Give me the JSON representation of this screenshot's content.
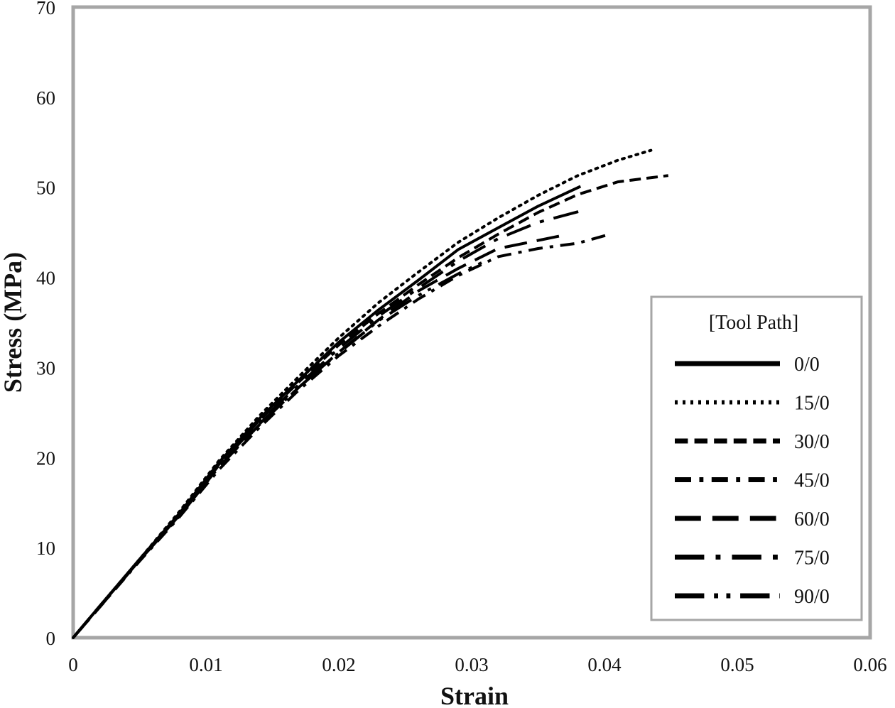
{
  "chart_data": {
    "type": "line",
    "xlabel": "Strain",
    "ylabel": "Stress (MPa)",
    "xlim": [
      0,
      0.06
    ],
    "ylim": [
      0,
      70
    ],
    "xticks": [
      "0",
      "0.01",
      "0.02",
      "0.03",
      "0.04",
      "0.05",
      "0.06"
    ],
    "yticks": [
      "0",
      "10",
      "20",
      "30",
      "40",
      "50",
      "60",
      "70"
    ],
    "grid": false,
    "legend": {
      "title": "[Tool Path]",
      "placement": "bottom-right"
    },
    "series": [
      {
        "name": "0/0",
        "style": "solid",
        "x": [
          0,
          0.002,
          0.005,
          0.008,
          0.011,
          0.014,
          0.017,
          0.02,
          0.023,
          0.026,
          0.029,
          0.032,
          0.035,
          0.0382
        ],
        "y": [
          0,
          3.5,
          8.7,
          13.8,
          19.5,
          24.3,
          28.6,
          32.8,
          36.4,
          39.7,
          43.1,
          45.5,
          47.9,
          50.1
        ]
      },
      {
        "name": "15/0",
        "style": "dotted",
        "x": [
          0,
          0.002,
          0.005,
          0.008,
          0.011,
          0.014,
          0.017,
          0.02,
          0.023,
          0.026,
          0.029,
          0.032,
          0.035,
          0.038,
          0.041,
          0.0435
        ],
        "y": [
          0,
          3.5,
          8.7,
          14.0,
          19.7,
          24.6,
          29.0,
          33.3,
          37.2,
          40.6,
          43.9,
          46.6,
          49.1,
          51.3,
          53.0,
          54.1
        ]
      },
      {
        "name": "30/0",
        "style": "short-dash",
        "x": [
          0,
          0.002,
          0.005,
          0.008,
          0.011,
          0.014,
          0.017,
          0.02,
          0.023,
          0.026,
          0.029,
          0.032,
          0.035,
          0.038,
          0.041,
          0.0448
        ],
        "y": [
          0,
          3.5,
          8.6,
          13.7,
          19.3,
          24.1,
          28.4,
          32.5,
          36.0,
          39.2,
          42.2,
          44.8,
          47.2,
          49.2,
          50.6,
          51.3
        ]
      },
      {
        "name": "45/0",
        "style": "dash-dot",
        "x": [
          0,
          0.002,
          0.005,
          0.008,
          0.011,
          0.014,
          0.017,
          0.02,
          0.023,
          0.026,
          0.029,
          0.032,
          0.035,
          0.038,
          0.0402
        ],
        "y": [
          0,
          3.4,
          8.5,
          13.4,
          18.7,
          23.3,
          27.5,
          31.3,
          34.6,
          37.6,
          40.2,
          42.3,
          43.2,
          43.8,
          44.7
        ]
      },
      {
        "name": "60/0",
        "style": "long-dash",
        "x": [
          0,
          0.002,
          0.005,
          0.008,
          0.011,
          0.014,
          0.017,
          0.02,
          0.023,
          0.026,
          0.029,
          0.032,
          0.035,
          0.037
        ],
        "y": [
          0,
          3.4,
          8.6,
          13.6,
          19.0,
          23.6,
          27.8,
          31.7,
          35.3,
          38.5,
          41.0,
          43.2,
          44.1,
          44.7
        ]
      },
      {
        "name": "75/0",
        "style": "long-dash-dot",
        "x": [
          0,
          0.002,
          0.005,
          0.008,
          0.011,
          0.014,
          0.017,
          0.02,
          0.023,
          0.026,
          0.029,
          0.032,
          0.035,
          0.0383
        ],
        "y": [
          0,
          3.5,
          8.6,
          13.6,
          19.2,
          23.9,
          28.1,
          32.1,
          35.7,
          38.8,
          41.8,
          44.3,
          46.1,
          47.4
        ]
      },
      {
        "name": "90/0",
        "style": "long-dash-dot-dot",
        "x": [
          0,
          0.002,
          0.005,
          0.008,
          0.011,
          0.014,
          0.017,
          0.02,
          0.023,
          0.026,
          0.029,
          0.0313
        ],
        "y": [
          0,
          3.5,
          8.6,
          13.5,
          19.0,
          23.7,
          27.8,
          31.6,
          35.2,
          38.0,
          40.4,
          42.0
        ]
      }
    ]
  }
}
